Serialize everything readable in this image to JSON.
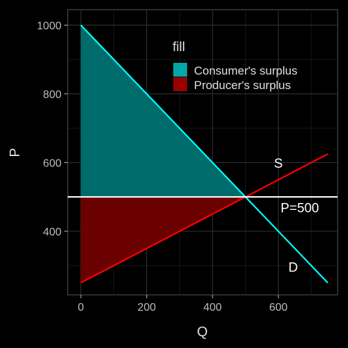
{
  "chart_data": {
    "type": "line",
    "title": "",
    "xlabel": "Q",
    "ylabel": "P",
    "xlim": [
      -40,
      780
    ],
    "ylim": [
      215,
      1045
    ],
    "x_ticks": [
      0,
      200,
      400,
      600
    ],
    "y_ticks": [
      400,
      600,
      800,
      1000
    ],
    "x_tick_labels": [
      "0",
      "200",
      "400",
      "600"
    ],
    "y_tick_labels": [
      "400",
      "600",
      "800",
      "1000"
    ],
    "grid": true,
    "legend": {
      "title": "fill",
      "position": "top-center",
      "entries": [
        {
          "label": "Consumer's surplus",
          "color": "#00a8a8"
        },
        {
          "label": "Producer's surplus",
          "color": "#990000"
        }
      ]
    },
    "series": [
      {
        "name": "D",
        "color": "#00ffff",
        "x": [
          0,
          750
        ],
        "y": [
          1000,
          250
        ]
      },
      {
        "name": "S",
        "color": "#ff0000",
        "x": [
          0,
          750
        ],
        "y": [
          250,
          625
        ]
      }
    ],
    "hline": {
      "y": 500,
      "color": "#ffffff"
    },
    "areas": [
      {
        "name": "Consumer's surplus",
        "color": "#006b6b",
        "points": [
          [
            0,
            1000
          ],
          [
            500,
            500
          ],
          [
            0,
            500
          ]
        ]
      },
      {
        "name": "Producer's surplus",
        "color": "#6b0000",
        "points": [
          [
            0,
            500
          ],
          [
            500,
            500
          ],
          [
            0,
            250
          ]
        ]
      }
    ],
    "annotations": [
      {
        "text": "S",
        "x": 600,
        "y": 595
      },
      {
        "text": "P=500",
        "x": 665,
        "y": 465
      },
      {
        "text": "D",
        "x": 645,
        "y": 292
      }
    ]
  }
}
